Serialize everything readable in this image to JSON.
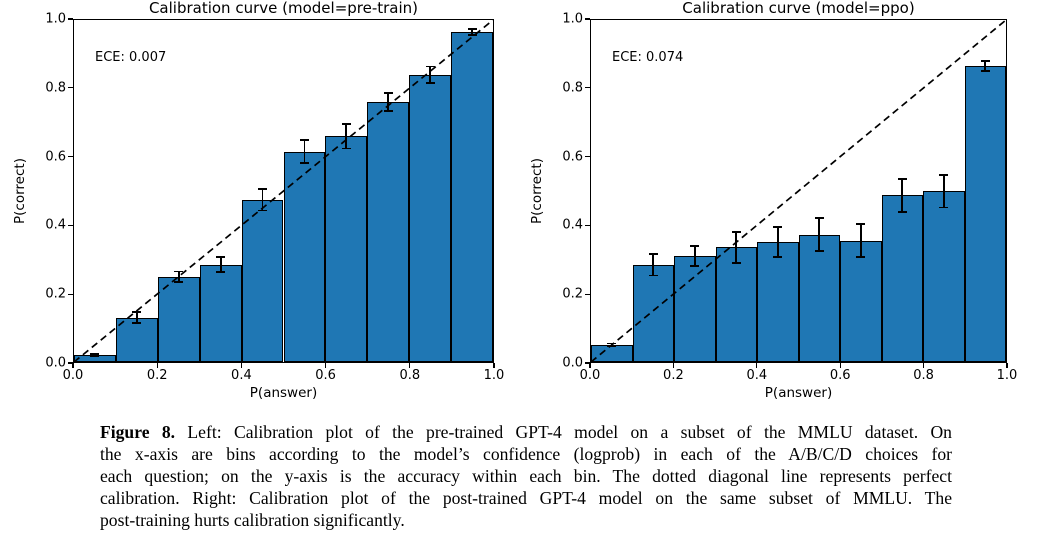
{
  "chart_data": [
    {
      "type": "bar",
      "title": "Calibration curve (model=pre-train)",
      "annotation": "ECE: 0.007",
      "xlabel": "P(answer)",
      "ylabel": "P(correct)",
      "xlim": [
        0.0,
        1.0
      ],
      "ylim": [
        0.0,
        1.0
      ],
      "xticks": [
        "0.0",
        "0.2",
        "0.4",
        "0.6",
        "0.8",
        "1.0"
      ],
      "yticks": [
        "0.0",
        "0.2",
        "0.4",
        "0.6",
        "0.8",
        "1.0"
      ],
      "bin_left_edges": [
        0.0,
        0.1,
        0.2,
        0.3,
        0.4,
        0.5,
        0.6,
        0.7,
        0.8,
        0.9
      ],
      "bin_width": 0.1,
      "values": [
        0.02,
        0.13,
        0.25,
        0.285,
        0.475,
        0.615,
        0.66,
        0.76,
        0.84,
        0.965
      ],
      "errors": [
        0.004,
        0.016,
        0.015,
        0.021,
        0.032,
        0.034,
        0.036,
        0.027,
        0.024,
        0.008
      ],
      "diagonal_line": "perfect calibration (0,0)-(1,1), dashed",
      "bar_color": "#1f77b4",
      "edge_color": "#000000",
      "diagonal_color": "#000000",
      "grid": false
    },
    {
      "type": "bar",
      "title": "Calibration curve (model=ppo)",
      "annotation": "ECE: 0.074",
      "xlabel": "P(answer)",
      "ylabel": "P(correct)",
      "xlim": [
        0.0,
        1.0
      ],
      "ylim": [
        0.0,
        1.0
      ],
      "xticks": [
        "0.0",
        "0.2",
        "0.4",
        "0.6",
        "0.8",
        "1.0"
      ],
      "yticks": [
        "0.0",
        "0.2",
        "0.4",
        "0.6",
        "0.8",
        "1.0"
      ],
      "bin_left_edges": [
        0.0,
        0.1,
        0.2,
        0.3,
        0.4,
        0.5,
        0.6,
        0.7,
        0.8,
        0.9
      ],
      "bin_width": 0.1,
      "values": [
        0.05,
        0.285,
        0.31,
        0.335,
        0.35,
        0.372,
        0.355,
        0.487,
        0.5,
        0.866
      ],
      "errors": [
        0.004,
        0.032,
        0.03,
        0.045,
        0.044,
        0.048,
        0.048,
        0.048,
        0.048,
        0.015
      ],
      "diagonal_line": "perfect calibration (0,0)-(1,1), dashed",
      "bar_color": "#1f77b4",
      "edge_color": "#000000",
      "diagonal_color": "#000000",
      "grid": false
    }
  ],
  "caption": {
    "label": "Figure 8.",
    "lines": [
      "Left: Calibration plot of the pre-trained GPT-4 model on a subset of the MMLU dataset. On",
      "the x-axis are bins according to the model’s confidence (logprob) in each of the A/B/C/D choices for",
      "each question; on the y-axis is the accuracy within each bin. The dotted diagonal line represents perfect",
      "calibration. Right: Calibration plot of the post-trained GPT-4 model on the same subset of MMLU. The",
      "post-training hurts calibration significantly."
    ]
  }
}
